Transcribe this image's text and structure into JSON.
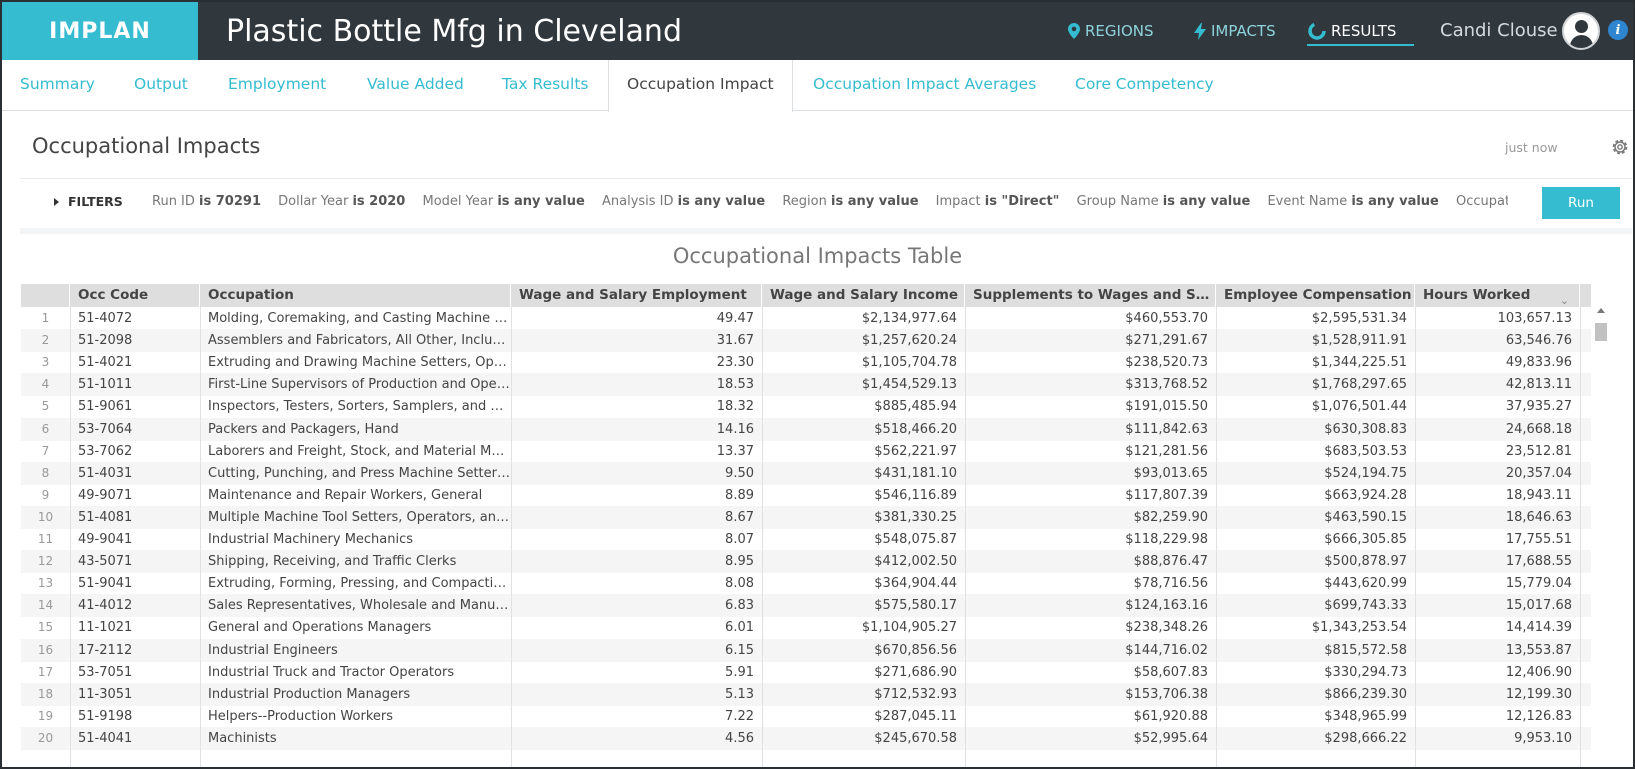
{
  "header": {
    "logo": "IMPLAN",
    "title": "Plastic Bottle Mfg in Cleveland",
    "nav": [
      {
        "label": "REGIONS",
        "icon": "map-pin-icon"
      },
      {
        "label": "IMPACTS",
        "icon": "lightning-icon"
      },
      {
        "label": "RESULTS",
        "icon": "pie-chart-icon"
      }
    ],
    "user_name": "Candi Clouse"
  },
  "tabs": [
    {
      "label": "Summary"
    },
    {
      "label": "Output"
    },
    {
      "label": "Employment"
    },
    {
      "label": "Value Added"
    },
    {
      "label": "Tax Results"
    },
    {
      "label": "Occupation Impact"
    },
    {
      "label": "Occupation Impact Averages"
    },
    {
      "label": "Core Competency"
    }
  ],
  "active_tab": "Occupation Impact",
  "section": {
    "title": "Occupational Impacts",
    "updated": "just now"
  },
  "filters": {
    "toggle_label": "FILTERS",
    "items": [
      {
        "name": "Run ID",
        "value": "is 70291"
      },
      {
        "name": "Dollar Year",
        "value": "is 2020"
      },
      {
        "name": "Model Year",
        "value": "is any value"
      },
      {
        "name": "Analysis ID",
        "value": "is any value"
      },
      {
        "name": "Region",
        "value": "is any value"
      },
      {
        "name": "Impact",
        "value": "is \"Direct\""
      },
      {
        "name": "Group Name",
        "value": "is any value"
      },
      {
        "name": "Event Name",
        "value": "is any value"
      },
      {
        "name": "Occupation Aggregation Leve",
        "value": ""
      }
    ],
    "run_label": "Run"
  },
  "table": {
    "title": "Occupational Impacts Table",
    "columns": [
      "Occ Code",
      "Occupation",
      "Wage and Salary Employment",
      "Wage and Salary Income",
      "Supplements to Wages and Salaries",
      "Employee Compensation",
      "Hours Worked"
    ],
    "rows": [
      [
        "1",
        "51-4072",
        "Molding, Coremaking, and Casting Machine Setters, Operators, and Tenders, Metal and Plastic",
        "49.47",
        "$2,134,977.64",
        "$460,553.70",
        "$2,595,531.34",
        "103,657.13"
      ],
      [
        "2",
        "51-2098",
        "Assemblers and Fabricators, All Other, Including Team Assemblers",
        "31.67",
        "$1,257,620.24",
        "$271,291.67",
        "$1,528,911.91",
        "63,546.76"
      ],
      [
        "3",
        "51-4021",
        "Extruding and Drawing Machine Setters, Operators, and Tenders, Metal and Plastic",
        "23.30",
        "$1,105,704.78",
        "$238,520.73",
        "$1,344,225.51",
        "49,833.96"
      ],
      [
        "4",
        "51-1011",
        "First-Line Supervisors of Production and Operating Workers",
        "18.53",
        "$1,454,529.13",
        "$313,768.52",
        "$1,768,297.65",
        "42,813.11"
      ],
      [
        "5",
        "51-9061",
        "Inspectors, Testers, Sorters, Samplers, and Weighers",
        "18.32",
        "$885,485.94",
        "$191,015.50",
        "$1,076,501.44",
        "37,935.27"
      ],
      [
        "6",
        "53-7064",
        "Packers and Packagers, Hand",
        "14.16",
        "$518,466.20",
        "$111,842.63",
        "$630,308.83",
        "24,668.18"
      ],
      [
        "7",
        "53-7062",
        "Laborers and Freight, Stock, and Material Movers, Hand",
        "13.37",
        "$562,221.97",
        "$121,281.56",
        "$683,503.53",
        "23,512.81"
      ],
      [
        "8",
        "51-4031",
        "Cutting, Punching, and Press Machine Setters, Operators, and Tenders",
        "9.50",
        "$431,181.10",
        "$93,013.65",
        "$524,194.75",
        "20,357.04"
      ],
      [
        "9",
        "49-9071",
        "Maintenance and Repair Workers, General",
        "8.89",
        "$546,116.89",
        "$117,807.39",
        "$663,924.28",
        "18,943.11"
      ],
      [
        "10",
        "51-4081",
        "Multiple Machine Tool Setters, Operators, and Tenders",
        "8.67",
        "$381,330.25",
        "$82,259.90",
        "$463,590.15",
        "18,646.63"
      ],
      [
        "11",
        "49-9041",
        "Industrial Machinery Mechanics",
        "8.07",
        "$548,075.87",
        "$118,229.98",
        "$666,305.85",
        "17,755.51"
      ],
      [
        "12",
        "43-5071",
        "Shipping, Receiving, and Traffic Clerks",
        "8.95",
        "$412,002.50",
        "$88,876.47",
        "$500,878.97",
        "17,688.55"
      ],
      [
        "13",
        "51-9041",
        "Extruding, Forming, Pressing, and Compacting Machine Setters",
        "8.08",
        "$364,904.44",
        "$78,716.56",
        "$443,620.99",
        "15,779.04"
      ],
      [
        "14",
        "41-4012",
        "Sales Representatives, Wholesale and Manufacturing",
        "6.83",
        "$575,580.17",
        "$124,163.16",
        "$699,743.33",
        "15,017.68"
      ],
      [
        "15",
        "11-1021",
        "General and Operations Managers",
        "6.01",
        "$1,104,905.27",
        "$238,348.26",
        "$1,343,253.54",
        "14,414.39"
      ],
      [
        "16",
        "17-2112",
        "Industrial Engineers",
        "6.15",
        "$670,856.56",
        "$144,716.02",
        "$815,572.58",
        "13,553.87"
      ],
      [
        "17",
        "53-7051",
        "Industrial Truck and Tractor Operators",
        "5.91",
        "$271,686.90",
        "$58,607.83",
        "$330,294.73",
        "12,406.90"
      ],
      [
        "18",
        "11-3051",
        "Industrial Production Managers",
        "5.13",
        "$712,532.93",
        "$153,706.38",
        "$866,239.30",
        "12,199.30"
      ],
      [
        "19",
        "51-9198",
        "Helpers--Production Workers",
        "7.22",
        "$287,045.11",
        "$61,920.88",
        "$348,965.99",
        "12,126.83"
      ],
      [
        "20",
        "51-4041",
        "Machinists",
        "4.56",
        "$245,670.58",
        "$52,995.64",
        "$298,666.22",
        "9,953.10"
      ]
    ]
  }
}
